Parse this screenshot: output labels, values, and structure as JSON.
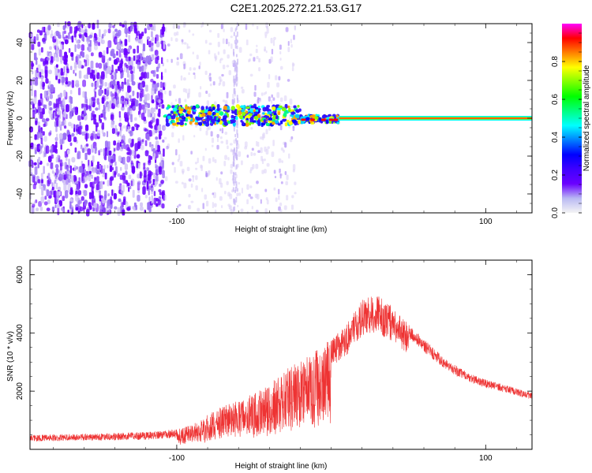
{
  "title": "C2E1.2025.272.21.53.G17",
  "chart_data": [
    {
      "type": "heatmap",
      "xlabel": "Height of straight line (km)",
      "ylabel": "Frequency (Hz)",
      "xlim": [
        -195,
        130
      ],
      "ylim": [
        -50,
        50
      ],
      "xticks": [
        -100,
        100
      ],
      "xtick_labels": [
        "-100",
        "100"
      ],
      "yticks": [
        -40,
        -20,
        0,
        20,
        40
      ],
      "ytick_labels": [
        "-40",
        "-20",
        "0",
        "20",
        "40"
      ],
      "colorbar": {
        "label": "Normalized spectral amplitude",
        "range": [
          0,
          1
        ],
        "ticks": [
          0.0,
          0.2,
          0.4,
          0.6,
          0.8
        ],
        "tick_labels": [
          "0.0",
          "0.2",
          "0.4",
          "0.6",
          "0.8"
        ],
        "colors": [
          "#f4f4f4",
          "#b9b9f3",
          "#6a00ff",
          "#3f00ff",
          "#0000ff",
          "#0080ff",
          "#00ffff",
          "#00ff80",
          "#00ff00",
          "#80ff00",
          "#ffff00",
          "#ff8000",
          "#ff0000",
          "#ff00ff"
        ]
      },
      "features": {
        "noise_region_x": [
          -195,
          -108
        ],
        "sparse_region_x": [
          -108,
          5
        ],
        "signal_band_x": [
          -108,
          5
        ],
        "steady_line_x": [
          5,
          130
        ],
        "steady_line_freq": 0
      }
    },
    {
      "type": "line",
      "xlabel": "Height of straight line (km)",
      "ylabel": "SNR (10 * v/v)",
      "xlim": [
        -195,
        130
      ],
      "ylim": [
        0,
        6500
      ],
      "xticks": [
        -100,
        100
      ],
      "xtick_labels": [
        "-100",
        "100"
      ],
      "yticks": [
        2000,
        4000,
        6000
      ],
      "ytick_labels": [
        "2000",
        "4000",
        "6000"
      ],
      "color": "#ee3333",
      "envelope": {
        "x": [
          -195,
          -150,
          -120,
          -100,
          -90,
          -80,
          -70,
          -60,
          -50,
          -40,
          -30,
          -20,
          -10,
          0,
          10,
          20,
          30,
          40,
          50,
          60,
          70,
          80,
          90,
          100,
          110,
          120,
          130
        ],
        "y": [
          500,
          550,
          600,
          700,
          850,
          1200,
          1500,
          1800,
          1900,
          2300,
          2800,
          3000,
          3400,
          3800,
          4300,
          5200,
          5300,
          4900,
          4300,
          3800,
          3300,
          2900,
          2600,
          2400,
          2250,
          2100,
          1950
        ]
      }
    }
  ]
}
